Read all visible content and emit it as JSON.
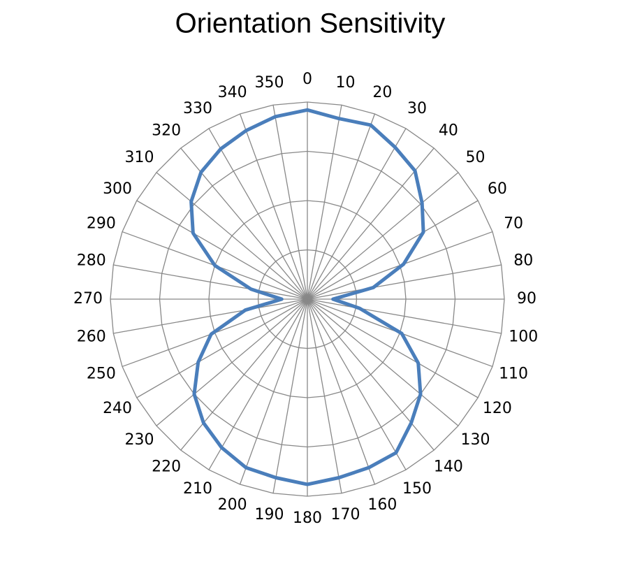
{
  "chart_data": {
    "type": "radar",
    "title": "Orientation Sensitivity",
    "categories": [
      "0",
      "10",
      "20",
      "30",
      "40",
      "50",
      "60",
      "70",
      "80",
      "90",
      "100",
      "110",
      "120",
      "130",
      "140",
      "150",
      "160",
      "170",
      "180",
      "190",
      "200",
      "210",
      "220",
      "230",
      "240",
      "250",
      "260",
      "270",
      "280",
      "290",
      "300",
      "310",
      "320",
      "330",
      "340",
      "350"
    ],
    "series": [
      {
        "color": "#4a7ebb",
        "values": [
          0.96,
          0.93,
          0.94,
          0.89,
          0.85,
          0.76,
          0.68,
          0.52,
          0.34,
          0.13,
          0.27,
          0.51,
          0.65,
          0.75,
          0.82,
          0.9,
          0.91,
          0.92,
          0.94,
          0.92,
          0.91,
          0.87,
          0.82,
          0.75,
          0.64,
          0.52,
          0.32,
          0.13,
          0.29,
          0.5,
          0.67,
          0.77,
          0.84,
          0.88,
          0.91,
          0.94
        ]
      }
    ],
    "ylim": [
      0,
      1
    ],
    "yticks": [
      0,
      0.25,
      0.5,
      0.75,
      1
    ],
    "grid": true
  }
}
